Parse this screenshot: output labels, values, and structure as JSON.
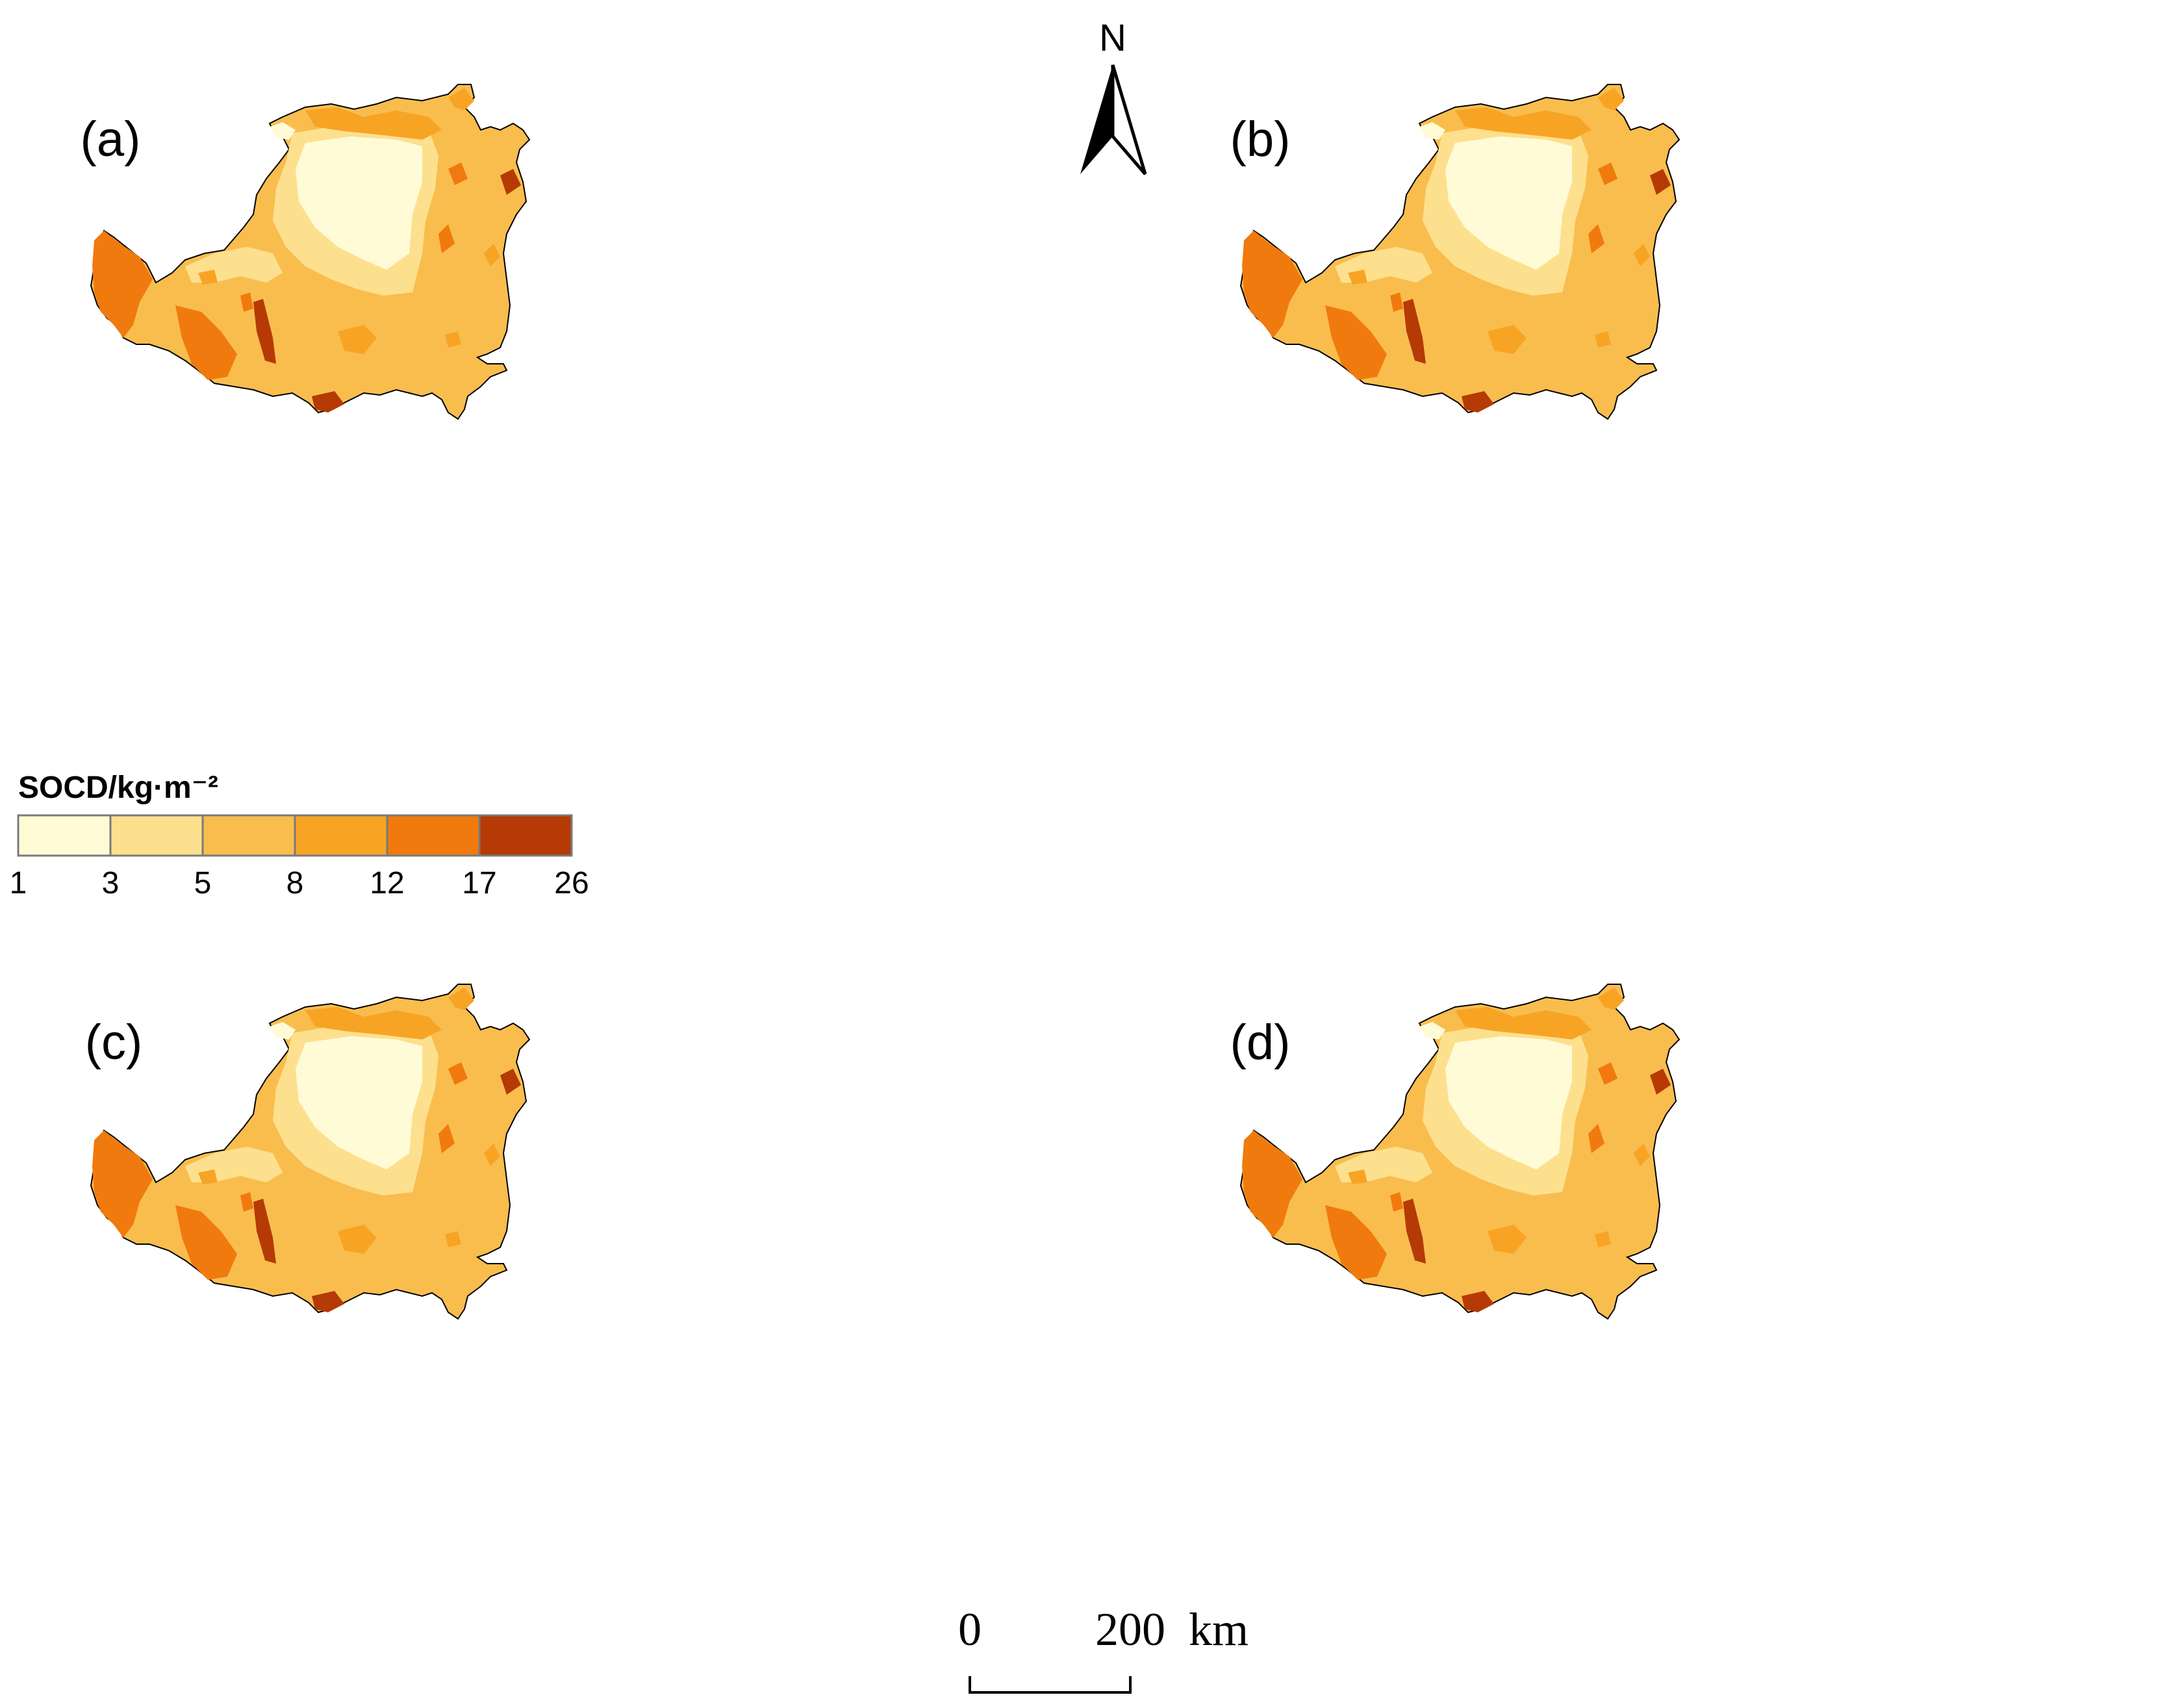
{
  "panels": [
    {
      "label": "(a)",
      "variant": 0
    },
    {
      "label": "(b)",
      "variant": 1
    },
    {
      "label": "(c)",
      "variant": 2
    },
    {
      "label": "(d)",
      "variant": 3
    }
  ],
  "north_arrow": {
    "label": "N"
  },
  "scale_bar": {
    "start_label": "0",
    "end_label": "200",
    "unit": "km"
  },
  "legend": {
    "title": "SOCD/kg·m⁻²",
    "breaks": [
      "1",
      "3",
      "5",
      "8",
      "12",
      "17",
      "26"
    ],
    "colors": [
      "#fffbd6",
      "#fde08e",
      "#f9bd4e",
      "#f7a425",
      "#f07a0d",
      "#b53a05"
    ]
  }
}
